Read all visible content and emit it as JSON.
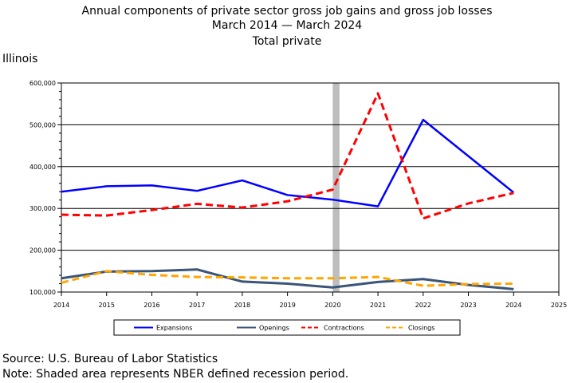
{
  "title": {
    "line1": "Annual components of private sector gross job gains and gross job losses",
    "line2": "March 2014 — March 2024",
    "line3": "Total private"
  },
  "region": "Illinois",
  "footer": {
    "source": "Source: U.S. Bureau of Labor Statistics",
    "note": "Note: Shaded area represents NBER defined recession period."
  },
  "chart_data": {
    "type": "line",
    "x": [
      2014,
      2015,
      2016,
      2017,
      2018,
      2019,
      2020,
      2021,
      2022,
      2023,
      2024
    ],
    "x_ticks": [
      2014,
      2015,
      2016,
      2017,
      2018,
      2019,
      2020,
      2021,
      2022,
      2023,
      2024,
      2025
    ],
    "xlim": [
      2014,
      2025
    ],
    "ylim": [
      100000,
      600000
    ],
    "y_ticks": [
      100000,
      200000,
      300000,
      400000,
      500000,
      600000
    ],
    "y_tick_labels": [
      "100,000",
      "200,000",
      "300,000",
      "400,000",
      "500,000",
      "600,000"
    ],
    "grid": "horizontal",
    "recession": [
      2020,
      2020.15
    ],
    "legend_position": "bottom",
    "series": [
      {
        "name": "Expansions",
        "color": "#0000ff",
        "style": "solid",
        "width": 2.5,
        "values": [
          340000,
          353000,
          355000,
          342000,
          367000,
          332000,
          321000,
          305000,
          512000,
          null,
          338000
        ]
      },
      {
        "name": "Openings",
        "color": "#3a5577",
        "style": "solid",
        "width": 3,
        "values": [
          133000,
          149000,
          150000,
          154000,
          125000,
          120000,
          111000,
          124000,
          131000,
          117000,
          107000
        ]
      },
      {
        "name": "Contractions",
        "color": "#ff0000",
        "style": "dashed",
        "width": 3,
        "values": [
          285000,
          283000,
          296000,
          311000,
          302000,
          317000,
          345000,
          575000,
          276000,
          312000,
          337000
        ]
      },
      {
        "name": "Closings",
        "color": "#ffa500",
        "style": "dashed",
        "width": 3,
        "values": [
          122000,
          150000,
          141000,
          136000,
          135000,
          133000,
          133000,
          136000,
          115000,
          119000,
          120000
        ]
      }
    ]
  }
}
